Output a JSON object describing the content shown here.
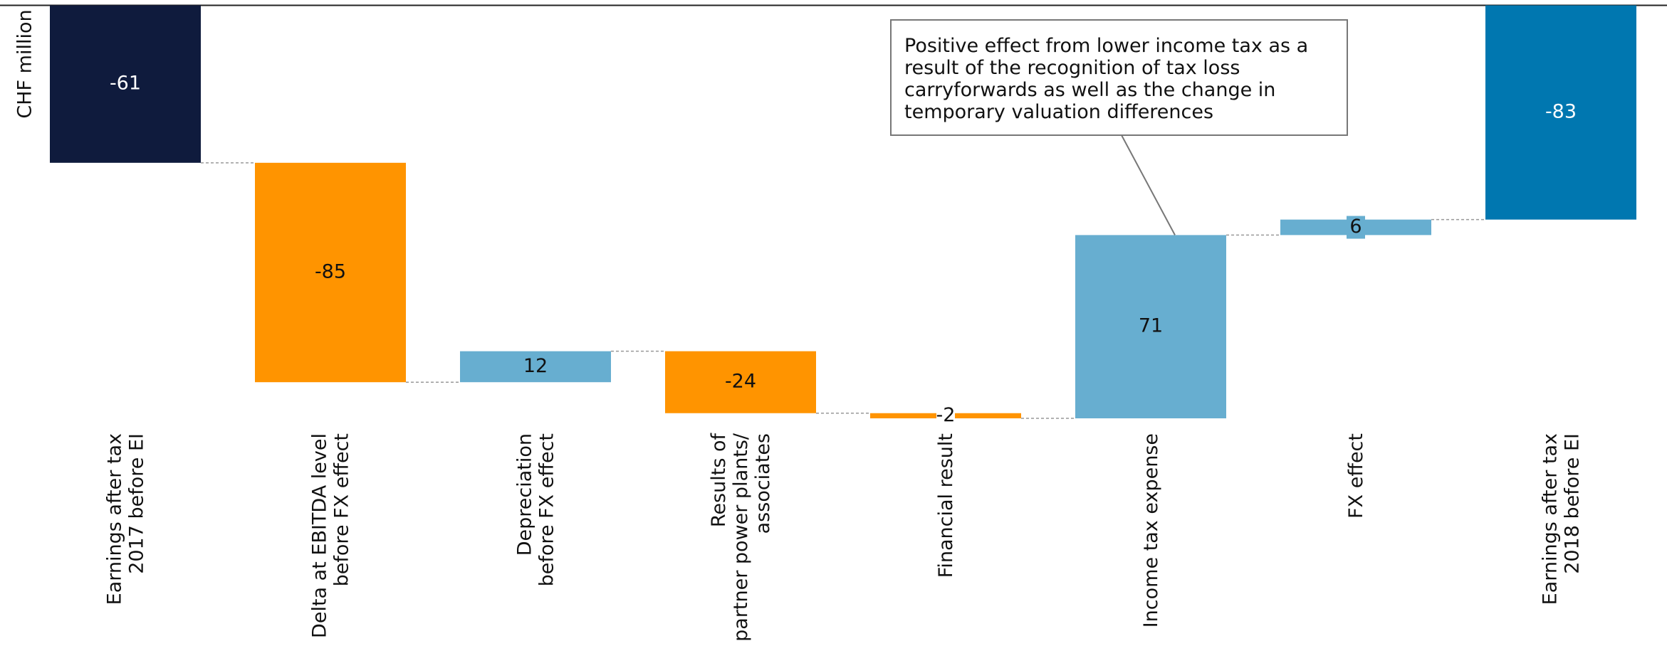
{
  "chart_data": {
    "type": "waterfall",
    "y_label": "CHF million",
    "categories": [
      [
        "Earnings after tax",
        "2017 before EI"
      ],
      [
        "Delta at EBITDA level",
        "before FX effect"
      ],
      [
        "Depreciation",
        "before FX effect"
      ],
      [
        "Results of",
        "partner power plants/",
        "associates"
      ],
      [
        "Financial result"
      ],
      [
        "Income tax expense"
      ],
      [
        "FX effect"
      ],
      [
        "Earnings after tax",
        "2018 before EI"
      ]
    ],
    "values": [
      -61,
      -85,
      12,
      -24,
      -2,
      71,
      6,
      -83
    ],
    "measure": [
      "absolute",
      "relative",
      "relative",
      "relative",
      "relative",
      "relative",
      "relative",
      "total"
    ],
    "colors": {
      "absolute": "#0f1b3d",
      "negative": "#ff9400",
      "positive": "#67aed0",
      "total": "#0077b0"
    },
    "ylim": [
      -160,
      0
    ],
    "annotation": {
      "lines": [
        "Positive effect from lower income tax as a",
        "result of the recognition of tax loss",
        "carryforwards as well as the change in",
        "temporary valuation differences"
      ],
      "target": 5
    }
  }
}
